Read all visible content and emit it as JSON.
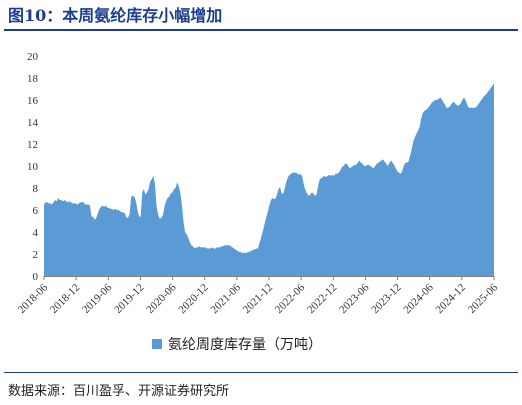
{
  "title": "图10：本周氨纶库存小幅增加",
  "source": "数据来源：百川盈孚、开源证券研究所",
  "colors": {
    "area": "#5b9bd5",
    "title": "#1c3d8f"
  },
  "chart_data": {
    "type": "area",
    "series": [
      {
        "name": "氨纶周度库存量（万吨）",
        "values": [
          6.5,
          6.7,
          6.7,
          6.6,
          6.6,
          6.5,
          6.7,
          6.9,
          6.8,
          7.1,
          6.9,
          6.9,
          6.8,
          6.9,
          6.8,
          6.7,
          6.8,
          6.7,
          6.6,
          6.6,
          6.6,
          6.5,
          6.6,
          6.7,
          6.7,
          6.7,
          6.5,
          6.5,
          6.5,
          6.4,
          5.4,
          5.4,
          5.1,
          5.3,
          5.7,
          6.1,
          6.3,
          6.4,
          6.3,
          6.4,
          6.2,
          6.2,
          6.1,
          6.1,
          6.0,
          6.1,
          6.0,
          6.0,
          5.9,
          5.8,
          5.8,
          5.7,
          5.3,
          5.3,
          5.6,
          7.2,
          7.3,
          7.2,
          6.8,
          6.0,
          5.4,
          5.4,
          7.6,
          7.9,
          7.4,
          7.6,
          7.9,
          8.6,
          8.8,
          9.1,
          8.4,
          6.4,
          5.6,
          5.2,
          5.3,
          5.5,
          6.3,
          6.8,
          7.1,
          7.2,
          7.5,
          7.6,
          7.9,
          8.0,
          8.5,
          8.2,
          7.6,
          6.5,
          5.0,
          4.0,
          3.8,
          3.5,
          3.1,
          2.8,
          2.7,
          2.5,
          2.6,
          2.6,
          2.7,
          2.6,
          2.6,
          2.6,
          2.6,
          2.5,
          2.5,
          2.5,
          2.6,
          2.5,
          2.5,
          2.6,
          2.6,
          2.6,
          2.7,
          2.7,
          2.8,
          2.8,
          2.8,
          2.8,
          2.7,
          2.6,
          2.5,
          2.4,
          2.3,
          2.2,
          2.2,
          2.1,
          2.1,
          2.1,
          2.1,
          2.2,
          2.2,
          2.3,
          2.4,
          2.4,
          2.5,
          2.5,
          3.0,
          3.5,
          4.0,
          4.6,
          5.2,
          5.7,
          6.3,
          6.8,
          7.1,
          7.0,
          7.0,
          7.4,
          7.9,
          8.1,
          7.5,
          7.5,
          8.0,
          8.6,
          9.0,
          9.2,
          9.3,
          9.4,
          9.4,
          9.4,
          9.3,
          9.2,
          9.3,
          9.0,
          8.3,
          7.8,
          7.5,
          7.3,
          7.4,
          7.6,
          7.5,
          7.3,
          7.4,
          8.2,
          8.8,
          8.9,
          9.0,
          9.1,
          9.0,
          9.1,
          9.2,
          9.1,
          9.2,
          9.1,
          9.3,
          9.3,
          9.4,
          9.6,
          9.9,
          10.0,
          10.2,
          10.2,
          10.0,
          9.8,
          9.9,
          10.0,
          10.1,
          10.1,
          10.3,
          10.5,
          10.3,
          10.2,
          10.0,
          10.0,
          10.1,
          10.1,
          10.0,
          9.9,
          9.8,
          10.0,
          10.2,
          10.3,
          10.4,
          10.5,
          10.6,
          10.4,
          10.2,
          10.0,
          10.3,
          10.5,
          10.3,
          10.1,
          9.8,
          9.5,
          9.4,
          9.3,
          9.5,
          10.0,
          10.3,
          10.3,
          10.4,
          10.9,
          11.5,
          12.2,
          12.6,
          12.9,
          13.2,
          13.5,
          14.3,
          14.8,
          15.0,
          15.1,
          15.2,
          15.4,
          15.6,
          15.8,
          15.9,
          16.0,
          16.0,
          16.1,
          16.2,
          16.1,
          15.8,
          15.6,
          15.3,
          15.3,
          15.4,
          15.6,
          15.8,
          15.8,
          15.6,
          15.5,
          15.5,
          15.7,
          16.0,
          16.2,
          16.0,
          15.6,
          15.3,
          15.3,
          15.3,
          15.3,
          15.3,
          15.4,
          15.6,
          15.8,
          16.0,
          16.2,
          16.4,
          16.5,
          16.7,
          16.9,
          17.1,
          17.3,
          17.5
        ]
      }
    ],
    "x_start": "2018-06",
    "x_end": "2025-06",
    "x_tick_labels": [
      "2018-06",
      "2018-12",
      "2019-06",
      "2019-12",
      "2020-06",
      "2020-12",
      "2021-06",
      "2021-12",
      "2022-06",
      "2022-12",
      "2023-06",
      "2023-12",
      "2024-06",
      "2024-12",
      "2025-06"
    ],
    "y_ticks": [
      0,
      2,
      4,
      6,
      8,
      10,
      12,
      14,
      16,
      18,
      20
    ],
    "ylim": [
      0,
      20
    ],
    "legend_position": "bottom-center",
    "grid": false
  }
}
